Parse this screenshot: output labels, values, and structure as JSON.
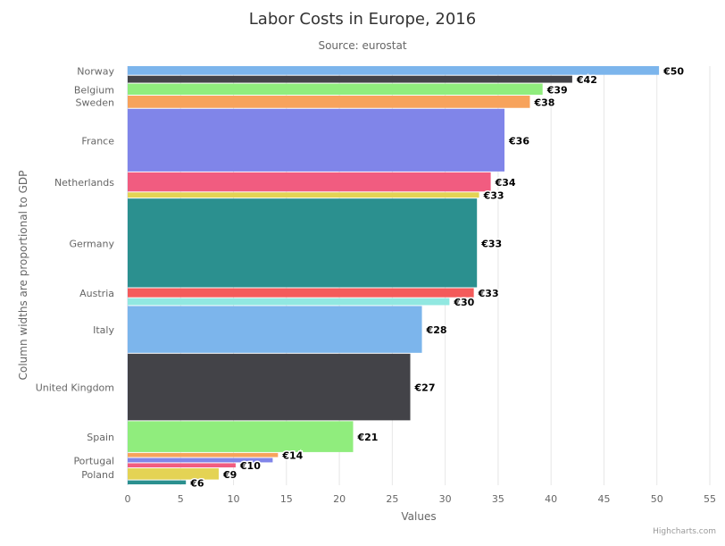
{
  "chart_data": {
    "type": "variwide-bar",
    "title": "Labor Costs in Europe, 2016",
    "subtitle": "Source: eurostat",
    "xlabel": "Values",
    "ylabel": "Column widths are proportional to GDP",
    "xlim": [
      0,
      55
    ],
    "ticks": [
      0,
      5,
      10,
      15,
      20,
      25,
      30,
      35,
      40,
      45,
      50,
      55
    ],
    "grid": true,
    "credits": "Highcharts.com",
    "colors": [
      "#7cb5ec",
      "#434348",
      "#90ed7d",
      "#f7a35c",
      "#8085e9",
      "#f15c80",
      "#e4d354",
      "#2b908f",
      "#f45b5b",
      "#91e8e1"
    ],
    "points": [
      {
        "category": "Norway",
        "value": 50.2,
        "gdp": 335504,
        "label": "€50"
      },
      {
        "category": "",
        "value": 42,
        "gdp": 277339,
        "label": "€42"
      },
      {
        "category": "Belgium",
        "value": 39.2,
        "gdp": 421611,
        "label": "€39"
      },
      {
        "category": "Sweden",
        "value": 38,
        "gdp": 462057,
        "label": "€38"
      },
      {
        "category": "France",
        "value": 35.6,
        "gdp": 2228857,
        "label": "€36"
      },
      {
        "category": "Netherlands",
        "value": 34.3,
        "gdp": 702641,
        "label": "€34"
      },
      {
        "category": "",
        "value": 33.2,
        "gdp": 215615,
        "label": "€33"
      },
      {
        "category": "Germany",
        "value": 33.0,
        "gdp": 3144050,
        "label": "€33"
      },
      {
        "category": "Austria",
        "value": 32.7,
        "gdp": 349344,
        "label": "€33"
      },
      {
        "category": "",
        "value": 30.4,
        "gdp": 275567,
        "label": "€30"
      },
      {
        "category": "Italy",
        "value": 27.8,
        "gdp": 1672438,
        "label": "€28"
      },
      {
        "category": "United Kingdom",
        "value": 26.7,
        "gdp": 2366911,
        "label": "€27"
      },
      {
        "category": "Spain",
        "value": 21.3,
        "gdp": 1113851,
        "label": "€21"
      },
      {
        "category": "",
        "value": 14.2,
        "gdp": 175887,
        "label": "€14"
      },
      {
        "category": "Portugal",
        "value": 13.7,
        "gdp": 184933,
        "label": ""
      },
      {
        "category": "",
        "value": 10.2,
        "gdp": 176564,
        "label": "€10"
      },
      {
        "category": "Poland",
        "value": 8.6,
        "gdp": 424269,
        "label": "€9"
      },
      {
        "category": "",
        "value": 5.5,
        "gdp": 169578,
        "label": "€6"
      }
    ]
  }
}
